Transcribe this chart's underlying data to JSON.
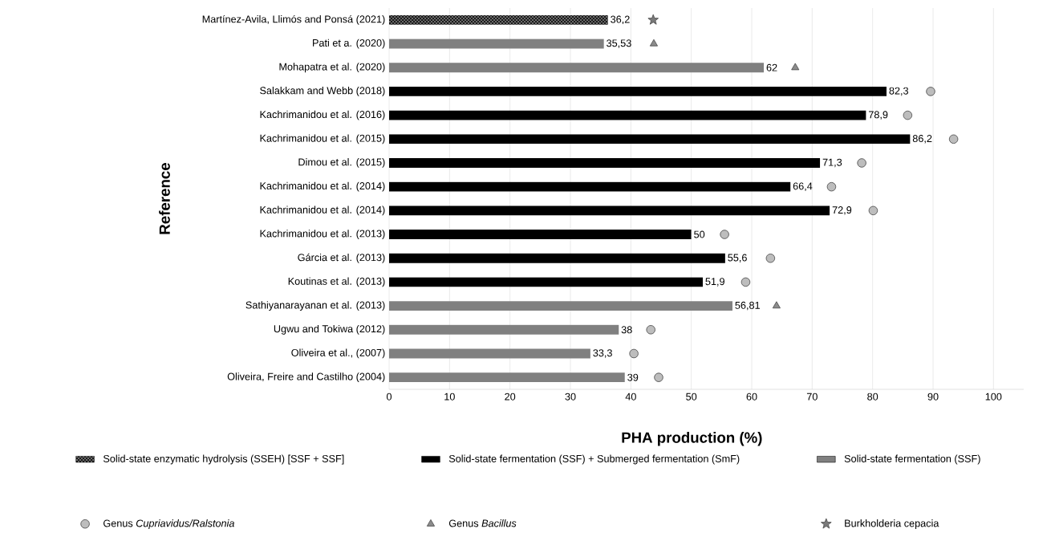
{
  "chart_data": {
    "type": "bar",
    "orientation": "horizontal",
    "xlabel": "PHA production (%)",
    "ylabel": "Reference",
    "categories": [
      "Martínez-Avila, Llimós and Ponsá (2021)",
      "Pati et a. (2020)",
      "Mohapatra et al. (2020)",
      "Salakkam and Webb (2018)",
      "Kachrimanidou et al. (2016)",
      "Kachrimanidou et al. (2015)",
      "Dimou et al. (2015)",
      "Kachrimanidou et al. (2014)",
      "Kachrimanidou et al. (2014)",
      "Kachrimanidou et al. (2013)",
      "Gárcia et al. (2013)",
      "Koutinas et al. (2013)",
      "Sathiyanarayanan et al.  (2013)",
      "Ugwu and Tokiwa (2012)",
      "Oliveira et al., (2007)",
      "Oliveira, Freire and Castilho (2004)"
    ],
    "series": [
      {
        "name": "Solid-state enzymatic hydrolysis (SSEH)  [SSF + SSF]",
        "color": "#1a1a1a",
        "values": [
          36.2,
          null,
          null,
          null,
          null,
          null,
          null,
          null,
          null,
          null,
          null,
          null,
          null,
          null,
          null,
          null
        ],
        "value_labels": [
          "36,2",
          null,
          null,
          null,
          null,
          null,
          null,
          null,
          null,
          null,
          null,
          null,
          null,
          null,
          null,
          null
        ]
      },
      {
        "name": "Solid-state fermentation (SSF) + Submerged fermentation (SmF)",
        "color": "#000000",
        "values": [
          null,
          null,
          null,
          82.3,
          78.9,
          86.2,
          71.3,
          66.4,
          72.9,
          50,
          55.6,
          51.9,
          null,
          null,
          null,
          null
        ],
        "value_labels": [
          null,
          null,
          null,
          "82,3",
          "78,9",
          "86,2",
          "71,3",
          "66,4",
          "72,9",
          "50",
          "55,6",
          "51,9",
          null,
          null,
          null,
          null
        ]
      },
      {
        "name": "Solid-state fermentation (SSF)",
        "color": "#808080",
        "values": [
          null,
          35.53,
          62,
          null,
          null,
          null,
          null,
          null,
          null,
          null,
          null,
          null,
          56.81,
          38,
          33.3,
          39
        ],
        "value_labels": [
          null,
          "35,53",
          "62",
          null,
          null,
          null,
          null,
          null,
          null,
          null,
          null,
          null,
          "56,81",
          "38",
          "33,3",
          "39"
        ]
      },
      {
        "type": "scatter",
        "name": "Genus *Cupriavidus/Ralstonia*",
        "color": "#bdbdbd",
        "marker": "circle",
        "values": [
          null,
          null,
          null,
          89.6,
          85.8,
          93.4,
          78.2,
          73.2,
          80.1,
          55.5,
          63.1,
          59.0,
          null,
          43.3,
          40.5,
          44.6
        ]
      },
      {
        "type": "scatter",
        "name": "Genus *Bacillus*",
        "color": "#8c8c8c",
        "marker": "triangle",
        "values": [
          null,
          43.8,
          67.2,
          null,
          null,
          null,
          null,
          null,
          null,
          null,
          null,
          null,
          64.1,
          null,
          null,
          null
        ]
      },
      {
        "type": "scatter",
        "name": "Burkholderia cepacia",
        "color": "#7a7a7a",
        "marker": "star",
        "values": [
          43.7,
          null,
          null,
          null,
          null,
          null,
          null,
          null,
          null,
          null,
          null,
          null,
          null,
          null,
          null,
          null
        ]
      }
    ],
    "xlim": [
      0,
      105
    ],
    "xticks": [
      0,
      10,
      20,
      30,
      40,
      50,
      60,
      70,
      80,
      90,
      100
    ],
    "grid": "x",
    "legend": "bottom"
  }
}
